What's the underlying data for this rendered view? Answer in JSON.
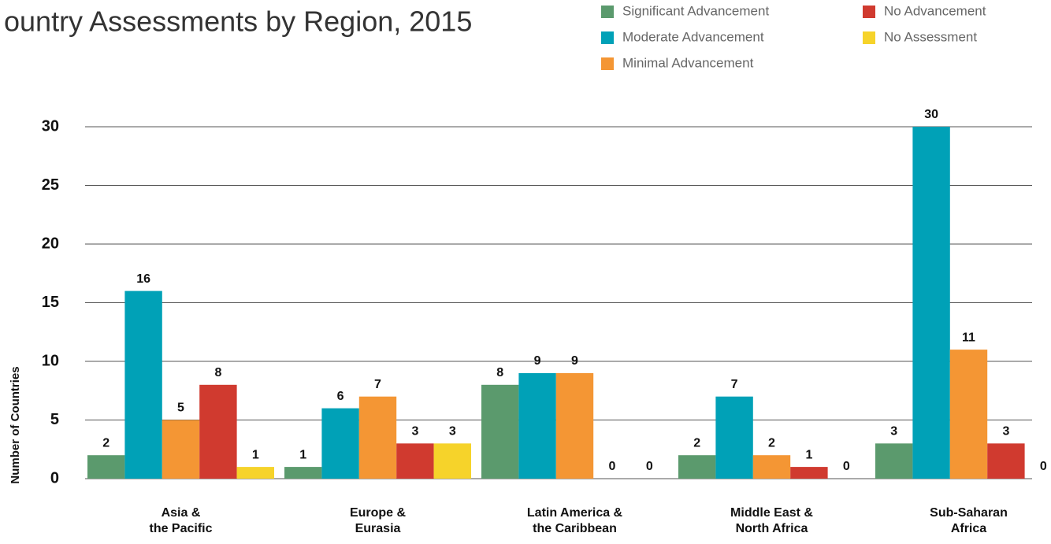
{
  "chart_data": {
    "type": "bar",
    "title": "ountry Assessments by Region, 2015",
    "y_label": "Number of Countries",
    "categories": [
      "Asia &\nthe Pacific",
      "Europe &\nEurasia",
      "Latin America &\nthe Caribbean",
      "Middle East &\nNorth Africa",
      "Sub-Saharan\nAfrica"
    ],
    "series": [
      {
        "name": "Significant Advancement",
        "color": "#5b9a6d",
        "values": [
          2,
          1,
          8,
          2,
          3
        ]
      },
      {
        "name": "Moderate Advancement",
        "color": "#00a1b7",
        "values": [
          16,
          6,
          9,
          7,
          30
        ]
      },
      {
        "name": "Minimal Advancement",
        "color": "#f49634",
        "values": [
          5,
          7,
          9,
          2,
          11
        ]
      },
      {
        "name": "No Advancement",
        "color": "#d03a2f",
        "values": [
          8,
          3,
          0,
          1,
          3
        ]
      },
      {
        "name": "No Assessment",
        "color": "#f6d32a",
        "values": [
          1,
          3,
          0,
          0,
          0
        ]
      }
    ],
    "ylim": [
      0,
      30
    ],
    "yticks": [
      0,
      5,
      10,
      15,
      20,
      25,
      30
    ],
    "grid": true
  }
}
